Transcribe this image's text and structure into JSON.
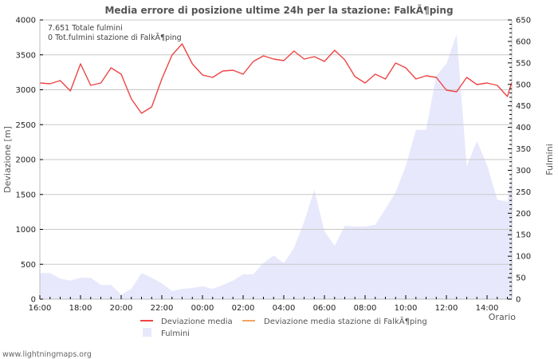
{
  "chart_data": {
    "type": "line",
    "title": "Media errore di posizione ultime 24h per la stazione: FalkÃ¶ping",
    "xlabel": "Orario",
    "ylabel": "Deviazione  [m]",
    "y2label": "Fulmini",
    "ylim": [
      0,
      4000
    ],
    "y2lim": [
      0,
      650
    ],
    "grid": true,
    "legend_position": "bottom",
    "x_tick_labels": [
      "16:00",
      "18:00",
      "20:00",
      "22:00",
      "00:00",
      "02:00",
      "04:00",
      "06:00",
      "08:00",
      "10:00",
      "12:00",
      "14:00"
    ],
    "y_ticks": [
      0,
      500,
      1000,
      1500,
      2000,
      2500,
      3000,
      3500,
      4000
    ],
    "y2_ticks": [
      0,
      50,
      100,
      150,
      200,
      250,
      300,
      350,
      400,
      450,
      500,
      550,
      600,
      650
    ],
    "annotations": [
      "7.651 Totale fulmini",
      "0 Tot.fulmini stazione di FalkÃ¶ping"
    ],
    "x": [
      "16:00",
      "16:30",
      "17:00",
      "17:30",
      "18:00",
      "18:30",
      "19:00",
      "19:30",
      "20:00",
      "20:30",
      "21:00",
      "21:30",
      "22:00",
      "22:30",
      "23:00",
      "23:30",
      "00:00",
      "00:30",
      "01:00",
      "01:30",
      "02:00",
      "02:30",
      "03:00",
      "03:30",
      "04:00",
      "04:30",
      "05:00",
      "05:30",
      "06:00",
      "06:30",
      "07:00",
      "07:30",
      "08:00",
      "08:30",
      "09:00",
      "09:30",
      "10:00",
      "10:30",
      "11:00",
      "11:30",
      "12:00",
      "12:30",
      "13:00",
      "13:30",
      "14:00",
      "14:30",
      "15:00",
      "15:15"
    ],
    "series": [
      {
        "name": "Deviazione media",
        "axis": "left",
        "type": "line",
        "color": "#ee4444",
        "values": [
          3097,
          3086,
          3131,
          2983,
          3371,
          3063,
          3097,
          3314,
          3223,
          2869,
          2663,
          2754,
          3154,
          3497,
          3657,
          3371,
          3211,
          3177,
          3269,
          3280,
          3223,
          3406,
          3486,
          3440,
          3417,
          3554,
          3440,
          3474,
          3406,
          3566,
          3429,
          3189,
          3097,
          3223,
          3154,
          3383,
          3314,
          3154,
          3200,
          3177,
          2994,
          2971,
          3177,
          3074,
          3097,
          3063,
          2903,
          3109
        ]
      },
      {
        "name": "Deviazione media stazione di FalkÃ¶ping",
        "axis": "left",
        "type": "line",
        "color": "#f4a460",
        "values": []
      },
      {
        "name": "Fulmini",
        "axis": "right",
        "type": "area",
        "color": "#e8e8fc",
        "values": [
          61,
          61,
          48,
          43,
          50,
          50,
          33,
          33,
          11,
          24,
          61,
          50,
          37,
          19,
          24,
          26,
          30,
          24,
          33,
          43,
          58,
          58,
          84,
          102,
          84,
          119,
          180,
          255,
          158,
          124,
          171,
          169,
          169,
          173,
          210,
          249,
          310,
          394,
          394,
          520,
          548,
          617,
          310,
          368,
          312,
          232,
          227,
          297
        ]
      }
    ]
  },
  "legend": {
    "items": [
      {
        "label": "Deviazione media",
        "color": "#ee4444"
      },
      {
        "label": "Deviazione media stazione di FalkÃ¶ping",
        "color": "#f4a460"
      },
      {
        "label": "Fulmini",
        "color": "#e8e8fc"
      }
    ]
  },
  "footer": {
    "text": "www.lightningmaps.org"
  }
}
